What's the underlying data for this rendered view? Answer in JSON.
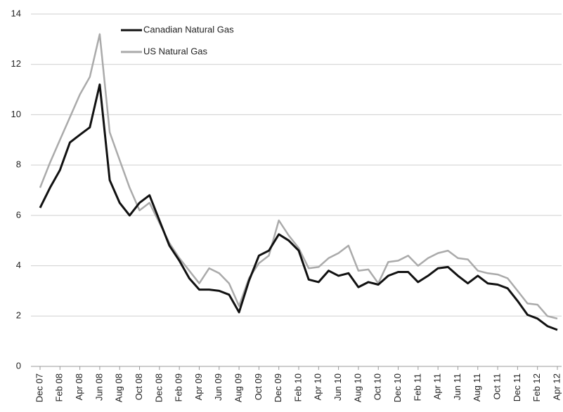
{
  "chart_data": {
    "type": "line",
    "categories": [
      "Dec 07",
      null,
      "Feb 08",
      null,
      "Apr 08",
      null,
      "Jun 08",
      null,
      "Aug 08",
      null,
      "Oct 08",
      null,
      "Dec 08",
      null,
      "Feb 09",
      null,
      "Apr 09",
      null,
      "Jun 09",
      null,
      "Aug 09",
      null,
      "Oct 09",
      null,
      "Dec 09",
      null,
      "Feb 10",
      null,
      "Apr 10",
      null,
      "Jun 10",
      null,
      "Aug 10",
      null,
      "Oct 10",
      null,
      "Dec 10",
      null,
      "Feb 11",
      null,
      "Apr 11",
      null,
      "Jun 11",
      null,
      "Aug 11",
      null,
      "Oct 11",
      null,
      "Dec 11",
      null,
      "Feb 12",
      null,
      "Apr 12"
    ],
    "series": [
      {
        "name": "Canadian Natural Gas",
        "color": "#111111",
        "values": [
          6.3,
          7.1,
          7.8,
          8.9,
          9.2,
          9.5,
          11.2,
          7.4,
          6.5,
          6.0,
          6.5,
          6.8,
          5.8,
          4.8,
          4.2,
          3.5,
          3.05,
          3.05,
          3.0,
          2.85,
          2.15,
          3.4,
          4.4,
          4.6,
          5.25,
          5.0,
          4.6,
          3.45,
          3.35,
          3.8,
          3.6,
          3.7,
          3.15,
          3.35,
          3.25,
          3.6,
          3.75,
          3.75,
          3.35,
          3.6,
          3.9,
          3.95,
          3.6,
          3.3,
          3.6,
          3.3,
          3.25,
          3.1,
          2.6,
          2.05,
          1.9,
          1.6,
          1.45
        ]
      },
      {
        "name": "US Natural Gas",
        "color": "#aaaaaa",
        "values": [
          7.1,
          8.1,
          9.0,
          9.9,
          10.8,
          11.5,
          13.2,
          9.3,
          8.2,
          7.1,
          6.2,
          6.5,
          5.7,
          4.9,
          4.3,
          3.8,
          3.3,
          3.9,
          3.7,
          3.3,
          2.4,
          3.5,
          4.1,
          4.4,
          5.8,
          5.2,
          4.7,
          3.9,
          3.95,
          4.3,
          4.5,
          4.8,
          3.8,
          3.85,
          3.3,
          4.15,
          4.2,
          4.4,
          4.0,
          4.3,
          4.5,
          4.6,
          4.3,
          4.25,
          3.8,
          3.7,
          3.65,
          3.5,
          3.0,
          2.5,
          2.45,
          2.0,
          1.9
        ]
      }
    ],
    "ylim": [
      0,
      14
    ],
    "yticks": [
      0,
      2,
      4,
      6,
      8,
      10,
      12,
      14
    ],
    "grid": true,
    "legend": "top-left"
  }
}
